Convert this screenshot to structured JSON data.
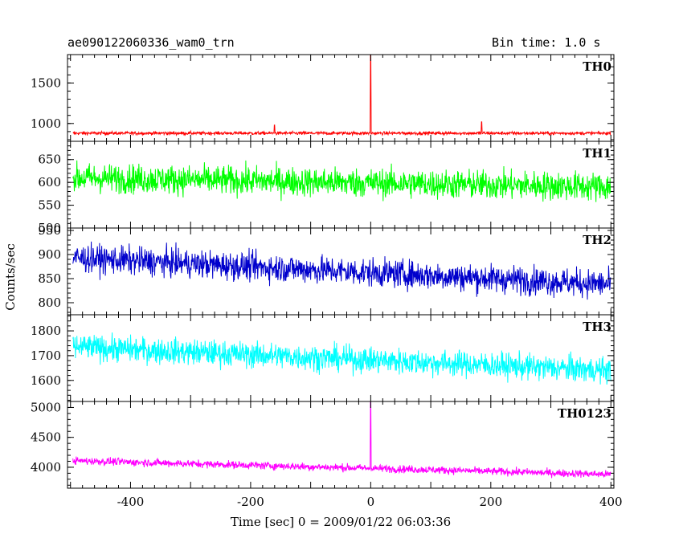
{
  "header": {
    "title": "ae090122060336_wam0_trn",
    "bin_time": "Bin time: 1.0 s"
  },
  "chart_data": {
    "type": "line",
    "xlabel": "Time [sec] 0 = 2009/01/22 06:03:36",
    "ylabel": "Counts/sec",
    "xlim": [
      -505,
      405
    ],
    "x_ticks": [
      -400,
      -200,
      0,
      200,
      400
    ],
    "grid": false,
    "panels": [
      {
        "name": "TH0",
        "color": "#ff0000",
        "ylim": [
          780,
          1850
        ],
        "y_ticks": [
          1000,
          1500
        ],
        "baseline": 880,
        "trend_end": 880,
        "noise": 35,
        "spikes": [
          {
            "x": 0,
            "y": 1850
          },
          {
            "x": 185,
            "y": 1020
          },
          {
            "x": -160,
            "y": 980
          }
        ]
      },
      {
        "name": "TH1",
        "color": "#00ff00",
        "ylim": [
          500,
          690
        ],
        "y_ticks": [
          500,
          550,
          600,
          650
        ],
        "baseline": 610,
        "trend_end": 590,
        "noise": 55,
        "spikes": []
      },
      {
        "name": "TH2",
        "color": "#0000cc",
        "ylim": [
          775,
          955
        ],
        "y_ticks": [
          800,
          850,
          900,
          950
        ],
        "baseline": 893,
        "trend_end": 838,
        "noise": 50,
        "spikes": []
      },
      {
        "name": "TH3",
        "color": "#00ffff",
        "ylim": [
          1515,
          1865
        ],
        "y_ticks": [
          1600,
          1700,
          1800
        ],
        "baseline": 1735,
        "trend_end": 1640,
        "noise": 90,
        "spikes": []
      },
      {
        "name": "TH0123",
        "color": "#ff00ff",
        "ylim": [
          3650,
          5100
        ],
        "y_ticks": [
          4000,
          4500,
          5000
        ],
        "baseline": 4110,
        "trend_end": 3880,
        "noise": 110,
        "spikes": [
          {
            "x": 0,
            "y": 5100
          }
        ]
      }
    ]
  }
}
